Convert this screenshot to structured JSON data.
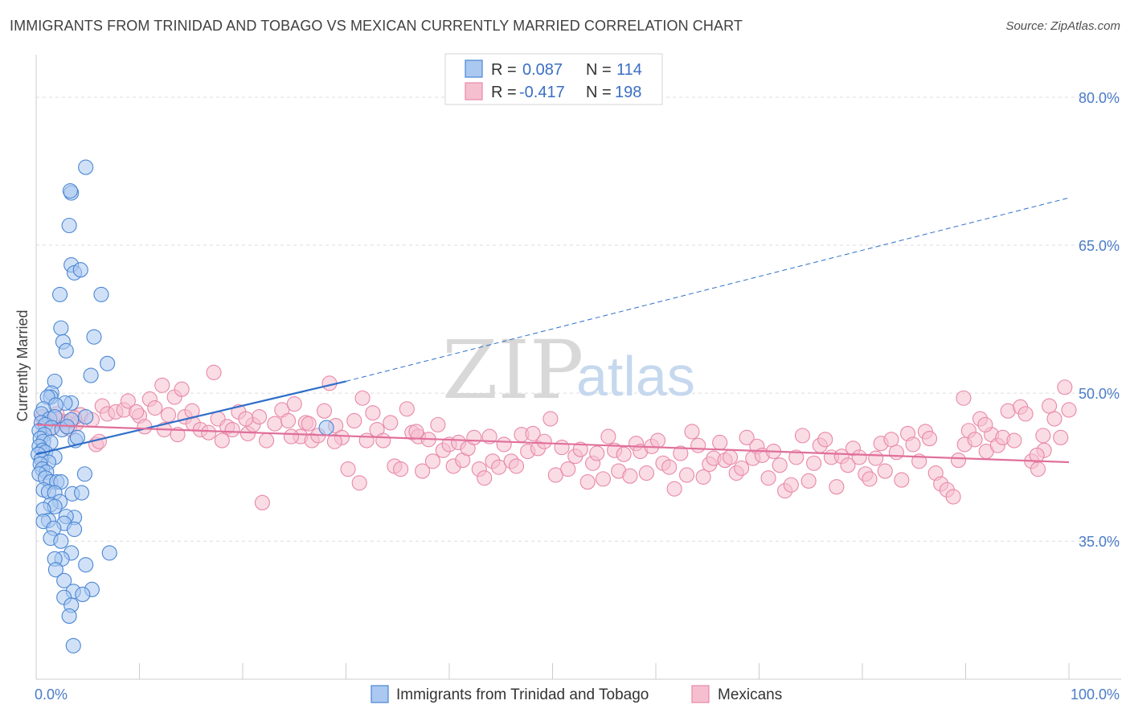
{
  "title": "IMMIGRANTS FROM TRINIDAD AND TOBAGO VS MEXICAN CURRENTLY MARRIED CORRELATION CHART",
  "source": "Source: ZipAtlas.com",
  "watermark": {
    "zip": "ZIP",
    "atlas": "atlas"
  },
  "legend": {
    "r_label": "R =",
    "n_label": "N =",
    "rows": [
      {
        "r": "0.087",
        "n": "114"
      },
      {
        "r": "-0.417",
        "n": "198"
      }
    ]
  },
  "chart_data": {
    "type": "scatter",
    "xlabel": "",
    "ylabel": "Currently Married",
    "xlim": [
      0,
      100
    ],
    "ylim": [
      21.0,
      83.5
    ],
    "x_tick_labels": [
      {
        "value": 0,
        "label": "0.0%"
      },
      {
        "value": 100,
        "label": "100.0%"
      }
    ],
    "y_tick_labels": [
      {
        "value": 80,
        "label": "80.0%"
      },
      {
        "value": 65,
        "label": "65.0%"
      },
      {
        "value": 50,
        "label": "50.0%"
      },
      {
        "value": 35,
        "label": "35.0%"
      }
    ],
    "grid": true,
    "legend_position": "top-center",
    "colors": {
      "blue_fill": "#aac8f0",
      "blue_stroke": "#4a86d4",
      "blue_line": "#2f6fc9",
      "pink_fill": "#f6bfd0",
      "pink_stroke": "#e888a8",
      "pink_line": "#e0709a",
      "grid": "#dddddd"
    },
    "series": [
      {
        "name": "Immigrants from Trinidad and Tobago",
        "trend": {
          "x0": 0,
          "y0": 43.8,
          "x1": 30,
          "y1": 51.2,
          "dash_x1": 100,
          "dash_y1": 69.8
        },
        "points": [
          [
            4.8,
            72.9
          ],
          [
            3.4,
            70.3
          ],
          [
            3.3,
            70.5
          ],
          [
            3.2,
            67.0
          ],
          [
            3.4,
            63.0
          ],
          [
            3.7,
            62.2
          ],
          [
            4.3,
            62.5
          ],
          [
            2.3,
            60.0
          ],
          [
            6.3,
            60.0
          ],
          [
            2.4,
            56.6
          ],
          [
            5.6,
            55.7
          ],
          [
            2.6,
            55.2
          ],
          [
            2.9,
            54.3
          ],
          [
            6.9,
            53.0
          ],
          [
            5.3,
            51.8
          ],
          [
            1.8,
            51.2
          ],
          [
            1.5,
            50.0
          ],
          [
            1.4,
            49.6
          ],
          [
            1.1,
            49.6
          ],
          [
            3.4,
            49.0
          ],
          [
            2.8,
            49.0
          ],
          [
            1.9,
            48.8
          ],
          [
            0.7,
            48.4
          ],
          [
            0.5,
            47.9
          ],
          [
            1.3,
            47.4
          ],
          [
            1.8,
            47.6
          ],
          [
            3.4,
            47.3
          ],
          [
            4.8,
            47.6
          ],
          [
            0.5,
            47.0
          ],
          [
            0.9,
            46.8
          ],
          [
            1.5,
            46.5
          ],
          [
            2.5,
            46.3
          ],
          [
            3.0,
            46.6
          ],
          [
            0.3,
            46.2
          ],
          [
            0.8,
            45.8
          ],
          [
            0.4,
            45.4
          ],
          [
            0.7,
            45.1
          ],
          [
            1.4,
            45.0
          ],
          [
            3.8,
            45.2
          ],
          [
            0.3,
            44.6
          ],
          [
            0.6,
            44.2
          ],
          [
            0.9,
            44.0
          ],
          [
            0.2,
            43.8
          ],
          [
            0.5,
            43.3
          ],
          [
            1.8,
            43.5
          ],
          [
            1.2,
            43.0
          ],
          [
            0.4,
            42.8
          ],
          [
            0.6,
            42.3
          ],
          [
            1.0,
            42.0
          ],
          [
            0.3,
            41.8
          ],
          [
            4.7,
            41.8
          ],
          [
            0.9,
            41.4
          ],
          [
            1.4,
            41.0
          ],
          [
            2.0,
            41.0
          ],
          [
            2.4,
            41.0
          ],
          [
            0.7,
            40.2
          ],
          [
            1.2,
            40.0
          ],
          [
            1.8,
            39.9
          ],
          [
            3.5,
            39.8
          ],
          [
            4.4,
            39.9
          ],
          [
            2.3,
            39.0
          ],
          [
            1.4,
            38.7
          ],
          [
            1.8,
            38.5
          ],
          [
            0.7,
            38.2
          ],
          [
            3.7,
            37.4
          ],
          [
            2.9,
            37.5
          ],
          [
            1.2,
            37.1
          ],
          [
            0.7,
            37.0
          ],
          [
            2.7,
            36.8
          ],
          [
            1.7,
            36.3
          ],
          [
            3.7,
            36.2
          ],
          [
            1.4,
            35.3
          ],
          [
            2.4,
            35.0
          ],
          [
            3.4,
            33.8
          ],
          [
            7.1,
            33.8
          ],
          [
            2.5,
            33.2
          ],
          [
            1.8,
            33.2
          ],
          [
            4.8,
            32.6
          ],
          [
            1.9,
            32.1
          ],
          [
            2.7,
            31.0
          ],
          [
            5.4,
            30.1
          ],
          [
            3.6,
            29.9
          ],
          [
            2.7,
            29.3
          ],
          [
            4.5,
            29.6
          ],
          [
            3.4,
            28.5
          ],
          [
            3.2,
            27.4
          ],
          [
            3.6,
            24.4
          ],
          [
            28.1,
            46.5
          ],
          [
            4.0,
            45.5
          ]
        ]
      },
      {
        "name": "Mexicans",
        "trend": {
          "x0": 0,
          "y0": 46.8,
          "x1": 100,
          "y1": 43.0
        },
        "points": [
          [
            0.6,
            47.6
          ],
          [
            1.4,
            47.4
          ],
          [
            2.3,
            47.2
          ],
          [
            2.9,
            47.1
          ],
          [
            3.9,
            46.9
          ],
          [
            4.3,
            47.8
          ],
          [
            5.4,
            47.3
          ],
          [
            6.4,
            48.7
          ],
          [
            6.9,
            47.9
          ],
          [
            7.7,
            48.1
          ],
          [
            8.5,
            48.3
          ],
          [
            8.9,
            49.2
          ],
          [
            10.0,
            47.7
          ],
          [
            10.5,
            46.6
          ],
          [
            11.0,
            49.4
          ],
          [
            12.2,
            50.8
          ],
          [
            12.8,
            47.8
          ],
          [
            13.4,
            49.6
          ],
          [
            14.1,
            50.4
          ],
          [
            14.4,
            47.6
          ],
          [
            15.2,
            46.9
          ],
          [
            15.9,
            46.3
          ],
          [
            16.7,
            46.0
          ],
          [
            17.2,
            52.1
          ],
          [
            17.6,
            47.4
          ],
          [
            18.5,
            46.6
          ],
          [
            19.0,
            46.3
          ],
          [
            19.6,
            48.1
          ],
          [
            20.5,
            45.9
          ],
          [
            21.0,
            46.8
          ],
          [
            21.6,
            47.6
          ],
          [
            21.9,
            38.9
          ],
          [
            22.3,
            45.2
          ],
          [
            23.1,
            46.9
          ],
          [
            23.8,
            48.3
          ],
          [
            24.4,
            47.2
          ],
          [
            25.0,
            48.9
          ],
          [
            25.6,
            45.6
          ],
          [
            26.1,
            47.0
          ],
          [
            26.7,
            45.2
          ],
          [
            27.3,
            45.7
          ],
          [
            27.9,
            48.2
          ],
          [
            28.4,
            51.0
          ],
          [
            29.0,
            46.7
          ],
          [
            29.6,
            45.5
          ],
          [
            30.2,
            42.3
          ],
          [
            30.8,
            47.2
          ],
          [
            31.3,
            40.9
          ],
          [
            32.0,
            45.2
          ],
          [
            32.6,
            48.0
          ],
          [
            33.0,
            46.3
          ],
          [
            33.6,
            45.2
          ],
          [
            34.3,
            47.0
          ],
          [
            34.7,
            42.6
          ],
          [
            35.3,
            42.3
          ],
          [
            35.9,
            48.4
          ],
          [
            36.4,
            46.0
          ],
          [
            37.0,
            45.6
          ],
          [
            37.4,
            42.1
          ],
          [
            38.0,
            45.3
          ],
          [
            38.4,
            43.1
          ],
          [
            38.9,
            46.8
          ],
          [
            39.4,
            44.2
          ],
          [
            40.0,
            44.8
          ],
          [
            40.4,
            42.6
          ],
          [
            40.9,
            45.0
          ],
          [
            41.3,
            43.2
          ],
          [
            41.8,
            44.4
          ],
          [
            42.4,
            45.5
          ],
          [
            42.9,
            42.3
          ],
          [
            43.4,
            41.4
          ],
          [
            43.9,
            45.6
          ],
          [
            44.2,
            43.1
          ],
          [
            44.8,
            42.5
          ],
          [
            45.3,
            44.8
          ],
          [
            46.0,
            43.1
          ],
          [
            46.5,
            42.6
          ],
          [
            47.0,
            45.8
          ],
          [
            47.6,
            44.1
          ],
          [
            48.1,
            45.9
          ],
          [
            48.6,
            44.4
          ],
          [
            49.2,
            45.1
          ],
          [
            49.8,
            47.4
          ],
          [
            50.3,
            41.7
          ],
          [
            50.9,
            44.5
          ],
          [
            51.5,
            42.3
          ],
          [
            52.2,
            43.6
          ],
          [
            52.7,
            44.3
          ],
          [
            53.4,
            41.0
          ],
          [
            53.9,
            42.9
          ],
          [
            54.3,
            43.9
          ],
          [
            54.9,
            41.3
          ],
          [
            55.4,
            45.6
          ],
          [
            56.0,
            44.2
          ],
          [
            56.4,
            42.1
          ],
          [
            56.9,
            43.8
          ],
          [
            57.5,
            41.6
          ],
          [
            58.1,
            44.9
          ],
          [
            58.5,
            44.1
          ],
          [
            59.1,
            41.9
          ],
          [
            59.6,
            44.6
          ],
          [
            60.2,
            45.2
          ],
          [
            60.7,
            42.9
          ],
          [
            61.3,
            42.5
          ],
          [
            61.8,
            40.3
          ],
          [
            62.4,
            43.9
          ],
          [
            63.0,
            41.7
          ],
          [
            63.5,
            46.1
          ],
          [
            64.1,
            44.7
          ],
          [
            64.6,
            41.5
          ],
          [
            65.2,
            42.8
          ],
          [
            65.6,
            43.4
          ],
          [
            66.2,
            45.0
          ],
          [
            66.7,
            43.2
          ],
          [
            67.2,
            43.5
          ],
          [
            67.8,
            41.9
          ],
          [
            68.3,
            42.4
          ],
          [
            68.8,
            45.5
          ],
          [
            69.4,
            43.4
          ],
          [
            69.8,
            44.6
          ],
          [
            70.3,
            43.7
          ],
          [
            70.9,
            41.4
          ],
          [
            71.4,
            44.1
          ],
          [
            72.0,
            42.7
          ],
          [
            72.5,
            40.1
          ],
          [
            73.1,
            40.7
          ],
          [
            73.6,
            43.5
          ],
          [
            74.2,
            45.7
          ],
          [
            74.8,
            41.1
          ],
          [
            75.3,
            42.9
          ],
          [
            75.9,
            44.7
          ],
          [
            76.4,
            45.3
          ],
          [
            77.0,
            43.5
          ],
          [
            77.5,
            40.5
          ],
          [
            78.0,
            43.6
          ],
          [
            78.6,
            42.7
          ],
          [
            79.1,
            44.4
          ],
          [
            79.7,
            43.5
          ],
          [
            80.3,
            41.8
          ],
          [
            80.7,
            41.3
          ],
          [
            81.3,
            43.4
          ],
          [
            81.8,
            44.9
          ],
          [
            82.2,
            42.1
          ],
          [
            82.8,
            45.3
          ],
          [
            83.3,
            44.0
          ],
          [
            83.8,
            41.2
          ],
          [
            84.4,
            45.9
          ],
          [
            84.9,
            44.8
          ],
          [
            85.5,
            43.1
          ],
          [
            86.1,
            46.1
          ],
          [
            86.5,
            45.4
          ],
          [
            87.1,
            41.9
          ],
          [
            87.6,
            40.8
          ],
          [
            88.2,
            40.2
          ],
          [
            88.8,
            39.5
          ],
          [
            89.3,
            43.2
          ],
          [
            89.9,
            44.8
          ],
          [
            90.3,
            46.2
          ],
          [
            90.9,
            45.3
          ],
          [
            91.4,
            47.4
          ],
          [
            92.0,
            44.1
          ],
          [
            92.5,
            45.8
          ],
          [
            93.1,
            44.7
          ],
          [
            93.6,
            45.5
          ],
          [
            94.1,
            48.2
          ],
          [
            94.7,
            45.2
          ],
          [
            95.3,
            48.6
          ],
          [
            95.8,
            47.9
          ],
          [
            96.4,
            43.1
          ],
          [
            97.0,
            42.3
          ],
          [
            97.5,
            45.7
          ],
          [
            98.1,
            48.7
          ],
          [
            98.6,
            47.4
          ],
          [
            99.2,
            45.5
          ],
          [
            99.6,
            50.6
          ],
          [
            100.0,
            48.3
          ],
          [
            89.8,
            49.5
          ],
          [
            97.6,
            44.2
          ],
          [
            91.9,
            46.8
          ],
          [
            96.9,
            43.7
          ],
          [
            5.8,
            44.8
          ],
          [
            3.2,
            46.4
          ],
          [
            2.0,
            47.9
          ],
          [
            3.7,
            47.5
          ],
          [
            1.6,
            46.5
          ],
          [
            6.1,
            45.1
          ],
          [
            12.4,
            46.3
          ],
          [
            11.5,
            48.5
          ],
          [
            9.7,
            48.1
          ],
          [
            15.1,
            48.2
          ],
          [
            13.7,
            45.8
          ],
          [
            18.0,
            45.2
          ],
          [
            20.3,
            47.4
          ],
          [
            24.7,
            45.6
          ],
          [
            26.4,
            46.9
          ],
          [
            28.9,
            45.1
          ],
          [
            31.6,
            49.5
          ],
          [
            36.8,
            46.1
          ]
        ]
      }
    ]
  }
}
